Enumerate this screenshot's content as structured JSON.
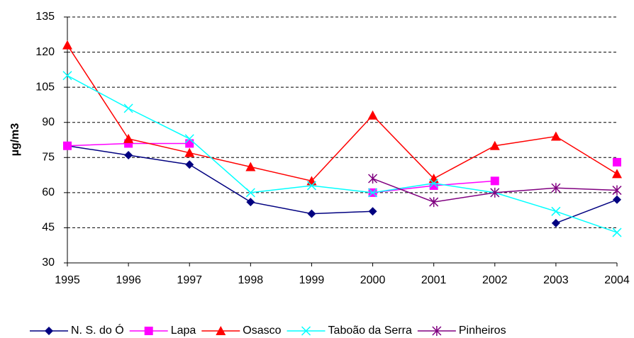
{
  "chart_data": {
    "type": "line",
    "y_label": "µg/m3",
    "x": [
      1995,
      1996,
      1997,
      1998,
      1999,
      2000,
      2001,
      2002,
      2003,
      2004
    ],
    "xlim": [
      1995,
      2004
    ],
    "xticks": [
      1995,
      1996,
      1997,
      1998,
      1999,
      2000,
      2001,
      2002,
      2003,
      2004
    ],
    "ylim": [
      30,
      135
    ],
    "yticks": [
      30,
      45,
      60,
      75,
      90,
      105,
      120,
      135
    ],
    "grid": true,
    "legend": "bottom",
    "series": [
      {
        "name": "N. S. do Ó",
        "color": "#000080",
        "marker": "diamond",
        "values": [
          80,
          76,
          72,
          56,
          51,
          52,
          null,
          null,
          47,
          57
        ]
      },
      {
        "name": "Lapa",
        "color": "#ff00ff",
        "marker": "square",
        "values": [
          80,
          81,
          81,
          null,
          null,
          60,
          63,
          65,
          null,
          73
        ]
      },
      {
        "name": "Osasco",
        "color": "#ff0000",
        "marker": "triangle",
        "values": [
          123,
          83,
          77,
          71,
          65,
          93,
          66,
          80,
          84,
          68
        ]
      },
      {
        "name": "Taboão da Serra",
        "color": "#00ffff",
        "marker": "x",
        "values": [
          110,
          96,
          83,
          60,
          63,
          60,
          64,
          60,
          52,
          43
        ]
      },
      {
        "name": "Pinheiros",
        "color": "#800080",
        "marker": "star",
        "values": [
          null,
          null,
          null,
          null,
          null,
          66,
          56,
          60,
          62,
          61
        ]
      }
    ]
  }
}
